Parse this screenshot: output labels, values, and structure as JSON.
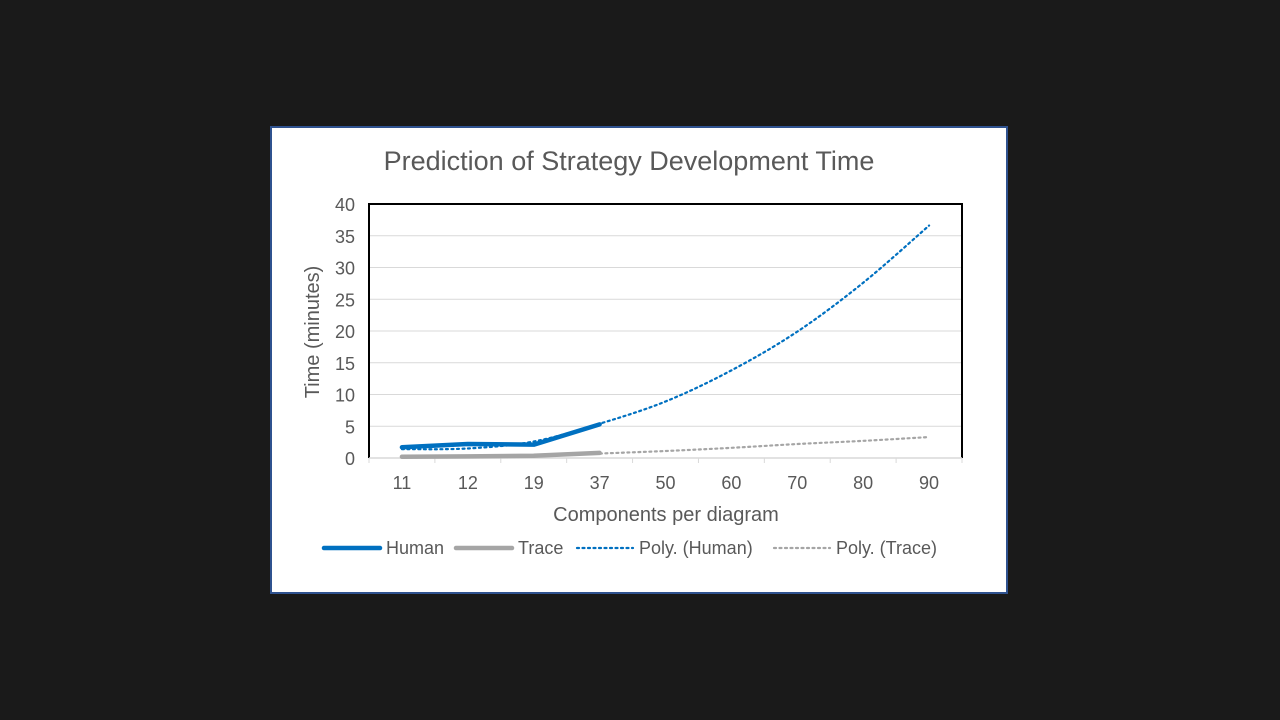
{
  "chart_data": {
    "type": "line",
    "title": "Prediction of Strategy Development Time",
    "xlabel": "Components per diagram",
    "ylabel": "Time (minutes)",
    "categories": [
      "11",
      "12",
      "19",
      "37",
      "50",
      "60",
      "70",
      "80",
      "90"
    ],
    "ylim": [
      0,
      40
    ],
    "yticks": [
      0,
      5,
      10,
      15,
      20,
      25,
      30,
      35,
      40
    ],
    "grid": true,
    "legend_position": "bottom",
    "series": [
      {
        "name": "Human",
        "values": [
          1.7,
          2.2,
          2.1,
          5.3,
          null,
          null,
          null,
          null,
          null
        ],
        "color": "#0070c0",
        "style": "solid"
      },
      {
        "name": "Trace",
        "values": [
          0.2,
          0.25,
          0.35,
          0.8,
          null,
          null,
          null,
          null,
          null
        ],
        "color": "#a5a5a5",
        "style": "solid"
      },
      {
        "name": "Poly. (Human)",
        "values": [
          1.4,
          1.5,
          2.6,
          5.4,
          8.9,
          13.8,
          19.9,
          27.6,
          36.6
        ],
        "color": "#0070c0",
        "style": "dotted"
      },
      {
        "name": "Poly. (Trace)",
        "values": [
          0.2,
          0.2,
          0.3,
          0.7,
          1.1,
          1.6,
          2.2,
          2.7,
          3.3
        ],
        "color": "#a5a5a5",
        "style": "dotted"
      }
    ]
  }
}
